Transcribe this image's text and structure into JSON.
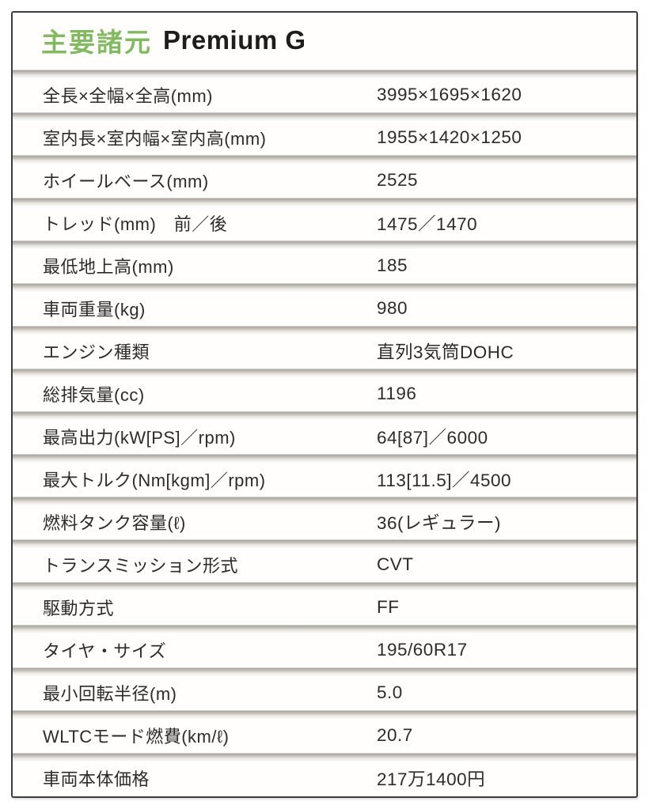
{
  "header": {
    "title_jp": "主要諸元",
    "grade": "Premium G"
  },
  "colors": {
    "accent_green": "#83B962",
    "text": "#2C2B29",
    "border": "#3F3D3C"
  },
  "rows": [
    {
      "label": "全長×全幅×全高(mm)",
      "value": "3995×1695×1620"
    },
    {
      "label": "室内長×室内幅×室内高(mm)",
      "value": "1955×1420×1250"
    },
    {
      "label": "ホイールベース(mm)",
      "value": "2525"
    },
    {
      "label": "トレッド(mm)　前／後",
      "value": "1475／1470"
    },
    {
      "label": "最低地上高(mm)",
      "value": "185"
    },
    {
      "label": "車両重量(kg)",
      "value": "980"
    },
    {
      "label": "エンジン種類",
      "value": "直列3気筒DOHC"
    },
    {
      "label": "総排気量(cc)",
      "value": "1196"
    },
    {
      "label": "最高出力(kW[PS]／rpm)",
      "value": "64[87]／6000"
    },
    {
      "label": "最大トルク(Nm[kgm]／rpm)",
      "value": "113[11.5]／4500"
    },
    {
      "label": "燃料タンク容量(ℓ)",
      "value": "36(レギュラー)"
    },
    {
      "label": "トランスミッション形式",
      "value": "CVT"
    },
    {
      "label": "駆動方式",
      "value": "FF"
    },
    {
      "label": "タイヤ・サイズ",
      "value": "195/60R17"
    },
    {
      "label": "最小回転半径(m)",
      "value": "5.0"
    },
    {
      "label": "WLTCモード燃費(km/ℓ)",
      "value": "20.7"
    },
    {
      "label": "車両本体価格",
      "value": "217万1400円"
    }
  ]
}
